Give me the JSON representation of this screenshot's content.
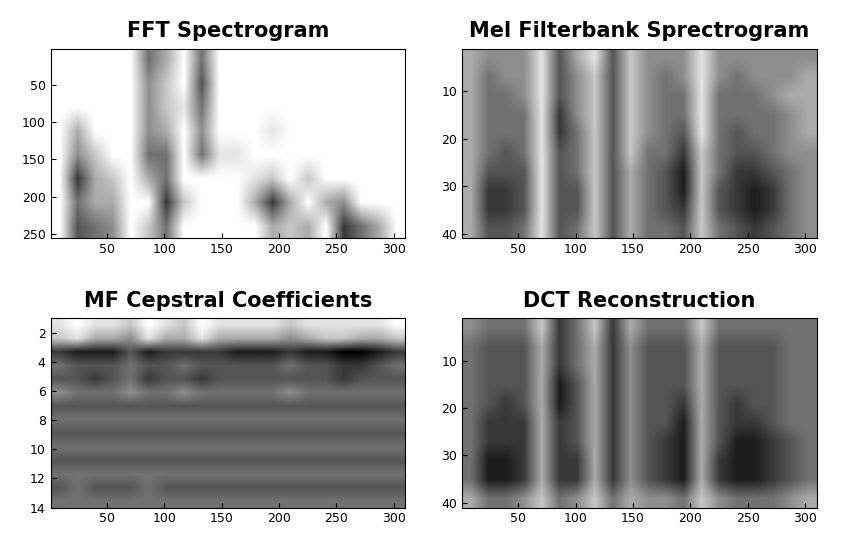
{
  "chart_data": [
    {
      "type": "heatmap",
      "title": "FFT Spectrogram",
      "xlim": [
        1,
        310
      ],
      "xticks": [
        50,
        100,
        150,
        200,
        250,
        300
      ],
      "ylim": [
        256,
        1
      ],
      "yticks": [
        50,
        100,
        150,
        200,
        250
      ],
      "clim": [
        0,
        9
      ],
      "cells": [
        [
          0,
          0,
          0,
          0,
          0,
          5,
          3,
          0,
          5,
          0,
          0,
          0,
          0,
          0,
          0,
          0,
          0,
          0,
          0,
          0
        ],
        [
          0,
          0,
          0,
          0,
          0,
          4,
          2,
          0,
          6,
          0,
          0,
          0,
          0,
          0,
          0,
          0,
          0,
          0,
          0,
          0
        ],
        [
          0,
          0,
          0,
          0,
          0,
          4,
          2,
          1,
          5,
          0,
          0,
          0,
          0,
          0,
          0,
          0,
          0,
          0,
          0,
          0
        ],
        [
          0,
          3,
          0,
          0,
          0,
          4,
          3,
          0,
          4,
          0,
          0,
          0,
          1,
          0,
          0,
          0,
          0,
          0,
          0,
          0
        ],
        [
          0,
          4,
          2,
          0,
          0,
          5,
          5,
          0,
          5,
          1,
          1,
          0,
          0,
          0,
          0,
          0,
          0,
          0,
          0,
          0
        ],
        [
          0,
          7,
          3,
          2,
          0,
          3,
          5,
          0,
          0,
          0,
          0,
          1,
          2,
          0,
          2,
          0,
          0,
          0,
          0,
          0
        ],
        [
          0,
          5,
          3,
          3,
          0,
          0,
          7,
          2,
          0,
          0,
          0,
          3,
          7,
          3,
          0,
          3,
          4,
          0,
          0,
          0
        ],
        [
          0,
          6,
          5,
          4,
          0,
          2,
          5,
          0,
          0,
          0,
          0,
          0,
          3,
          2,
          3,
          0,
          7,
          5,
          3,
          0
        ]
      ]
    },
    {
      "type": "heatmap",
      "title": "Mel Filterbank Sprectrogram",
      "xlim": [
        1,
        310
      ],
      "xticks": [
        50,
        100,
        150,
        200,
        250,
        300
      ],
      "ylim": [
        41,
        1
      ],
      "yticks": [
        10,
        20,
        30,
        40
      ],
      "clim": [
        0,
        9
      ],
      "cells": [
        [
          3,
          4,
          4,
          4,
          1,
          6,
          3,
          1,
          6,
          2,
          4,
          4,
          4,
          1,
          4,
          4,
          4,
          4,
          4,
          4
        ],
        [
          3,
          5,
          4,
          4,
          1,
          6,
          4,
          2,
          6,
          2,
          4,
          5,
          4,
          1,
          4,
          5,
          4,
          4,
          4,
          3
        ],
        [
          3,
          5,
          5,
          4,
          1,
          6,
          4,
          2,
          6,
          2,
          4,
          5,
          5,
          1,
          5,
          5,
          5,
          4,
          3,
          3
        ],
        [
          3,
          5,
          5,
          5,
          1,
          7,
          4,
          2,
          6,
          2,
          4,
          5,
          5,
          1,
          5,
          5,
          5,
          5,
          4,
          3
        ],
        [
          3,
          5,
          5,
          5,
          1,
          7,
          5,
          2,
          6,
          2,
          4,
          5,
          6,
          1,
          5,
          6,
          5,
          5,
          4,
          3
        ],
        [
          3,
          5,
          6,
          5,
          1,
          6,
          5,
          2,
          6,
          2,
          5,
          5,
          7,
          2,
          5,
          6,
          6,
          5,
          4,
          4
        ],
        [
          3,
          6,
          6,
          6,
          1,
          6,
          5,
          2,
          6,
          3,
          5,
          6,
          8,
          2,
          5,
          7,
          7,
          6,
          5,
          4
        ],
        [
          3,
          7,
          7,
          6,
          1,
          6,
          6,
          2,
          6,
          3,
          5,
          6,
          8,
          2,
          6,
          7,
          8,
          7,
          5,
          4
        ],
        [
          3,
          7,
          7,
          6,
          1,
          6,
          6,
          2,
          6,
          3,
          5,
          6,
          7,
          2,
          6,
          7,
          8,
          7,
          5,
          4
        ],
        [
          3,
          6,
          6,
          5,
          1,
          6,
          5,
          2,
          6,
          3,
          5,
          5,
          6,
          2,
          5,
          6,
          7,
          6,
          5,
          4
        ]
      ]
    },
    {
      "type": "heatmap",
      "title": "MF Cepstral Coefficients",
      "xlim": [
        1,
        310
      ],
      "xticks": [
        50,
        100,
        150,
        200,
        250,
        300
      ],
      "ylim": [
        14,
        1
      ],
      "yticks": [
        2,
        4,
        6,
        8,
        10,
        12,
        14
      ],
      "clim": [
        0,
        9
      ],
      "cells": [
        [
          1,
          0,
          1,
          1,
          2,
          0,
          1,
          2,
          0,
          1,
          1,
          1,
          1,
          2,
          1,
          1,
          1,
          1,
          1,
          0
        ],
        [
          2,
          1,
          3,
          3,
          4,
          1,
          3,
          3,
          1,
          3,
          3,
          3,
          3,
          4,
          3,
          2,
          2,
          3,
          3,
          2
        ],
        [
          7,
          8,
          8,
          8,
          6,
          8,
          7,
          7,
          7,
          7,
          8,
          8,
          8,
          7,
          8,
          8,
          9,
          9,
          8,
          7
        ],
        [
          5,
          6,
          6,
          6,
          5,
          6,
          6,
          5,
          6,
          6,
          6,
          6,
          6,
          5,
          6,
          6,
          7,
          7,
          6,
          5
        ],
        [
          6,
          6,
          7,
          6,
          5,
          7,
          6,
          6,
          7,
          6,
          6,
          6,
          6,
          6,
          6,
          6,
          7,
          6,
          6,
          6
        ],
        [
          4,
          5,
          5,
          5,
          4,
          5,
          5,
          4,
          5,
          5,
          5,
          5,
          5,
          4,
          5,
          5,
          5,
          5,
          5,
          5
        ],
        [
          6,
          6,
          6,
          6,
          6,
          6,
          6,
          6,
          6,
          6,
          6,
          6,
          6,
          6,
          6,
          6,
          6,
          6,
          6,
          6
        ],
        [
          5,
          5,
          5,
          5,
          5,
          5,
          5,
          5,
          5,
          5,
          5,
          5,
          5,
          5,
          5,
          5,
          5,
          5,
          5,
          5
        ],
        [
          6,
          6,
          6,
          6,
          6,
          6,
          6,
          6,
          6,
          6,
          6,
          6,
          6,
          6,
          6,
          6,
          6,
          6,
          6,
          6
        ],
        [
          5,
          5,
          5,
          5,
          5,
          5,
          5,
          5,
          5,
          5,
          5,
          5,
          5,
          5,
          5,
          5,
          5,
          5,
          5,
          5
        ],
        [
          6,
          6,
          6,
          6,
          6,
          6,
          6,
          6,
          6,
          6,
          6,
          6,
          6,
          6,
          6,
          6,
          6,
          6,
          6,
          6
        ],
        [
          5,
          5,
          5,
          5,
          5,
          5,
          5,
          5,
          5,
          5,
          5,
          5,
          5,
          5,
          5,
          5,
          5,
          5,
          5,
          5
        ],
        [
          6,
          5,
          6,
          6,
          6,
          5,
          6,
          6,
          6,
          6,
          6,
          6,
          6,
          6,
          6,
          6,
          6,
          6,
          6,
          6
        ],
        [
          5,
          5,
          5,
          5,
          5,
          5,
          5,
          5,
          5,
          5,
          5,
          5,
          5,
          5,
          5,
          5,
          5,
          5,
          5,
          5
        ]
      ]
    },
    {
      "type": "heatmap",
      "title": "DCT Reconstruction",
      "xlim": [
        1,
        310
      ],
      "xticks": [
        50,
        100,
        150,
        200,
        250,
        300
      ],
      "ylim": [
        41,
        1
      ],
      "yticks": [
        10,
        20,
        30,
        40
      ],
      "clim": [
        0,
        9
      ],
      "cells": [
        [
          4,
          5,
          5,
          5,
          2,
          7,
          5,
          2,
          7,
          3,
          5,
          5,
          5,
          2,
          5,
          5,
          5,
          5,
          5,
          5
        ],
        [
          5,
          6,
          6,
          6,
          3,
          7,
          5,
          3,
          7,
          4,
          6,
          6,
          6,
          3,
          6,
          6,
          6,
          6,
          5,
          5
        ],
        [
          5,
          6,
          6,
          6,
          3,
          7,
          5,
          3,
          7,
          4,
          6,
          6,
          6,
          3,
          6,
          6,
          6,
          6,
          5,
          5
        ],
        [
          5,
          6,
          6,
          6,
          3,
          8,
          6,
          3,
          7,
          4,
          6,
          6,
          6,
          3,
          6,
          6,
          6,
          6,
          5,
          5
        ],
        [
          5,
          6,
          7,
          6,
          3,
          8,
          6,
          3,
          7,
          4,
          6,
          6,
          7,
          3,
          6,
          7,
          6,
          6,
          5,
          5
        ],
        [
          5,
          7,
          7,
          7,
          3,
          7,
          6,
          3,
          7,
          4,
          6,
          6,
          8,
          3,
          6,
          7,
          7,
          6,
          5,
          5
        ],
        [
          5,
          7,
          7,
          7,
          3,
          7,
          6,
          3,
          7,
          4,
          6,
          7,
          8,
          3,
          6,
          8,
          8,
          7,
          6,
          5
        ],
        [
          5,
          8,
          8,
          7,
          3,
          7,
          7,
          3,
          7,
          4,
          6,
          7,
          8,
          3,
          7,
          8,
          8,
          7,
          6,
          5
        ],
        [
          5,
          8,
          8,
          7,
          3,
          7,
          7,
          3,
          7,
          4,
          6,
          7,
          8,
          3,
          7,
          8,
          8,
          7,
          6,
          5
        ],
        [
          3,
          5,
          5,
          4,
          2,
          5,
          4,
          2,
          5,
          3,
          4,
          4,
          5,
          2,
          4,
          5,
          5,
          5,
          4,
          3
        ]
      ]
    }
  ]
}
